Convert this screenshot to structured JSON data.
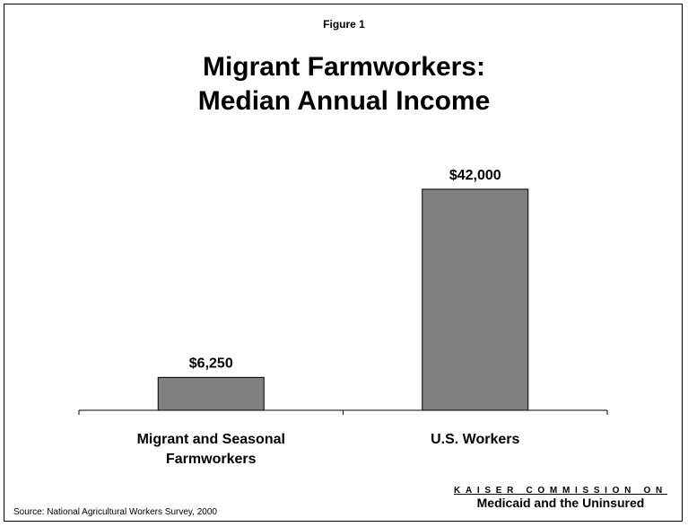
{
  "figure_label": "Figure 1",
  "title_lines": [
    "Migrant Farmworkers:",
    "Median Annual Income"
  ],
  "source": "Source: National Agricultural Workers Survey, 2000",
  "logo": {
    "line1": "KAISER COMMISSION ON",
    "line2": "Medicaid and the Uninsured"
  },
  "colors": {
    "bar": "#808080",
    "axis": "#000000"
  },
  "chart_data": {
    "type": "bar",
    "title": "Migrant Farmworkers: Median Annual Income",
    "categories": [
      [
        "Migrant and Seasonal",
        "Farmworkers"
      ],
      [
        "U.S. Workers"
      ]
    ],
    "values": [
      6250,
      42000
    ],
    "data_labels": [
      "$6,250",
      "$42,000"
    ],
    "ylim": [
      0,
      51000
    ],
    "grid": false,
    "legend": "none"
  }
}
